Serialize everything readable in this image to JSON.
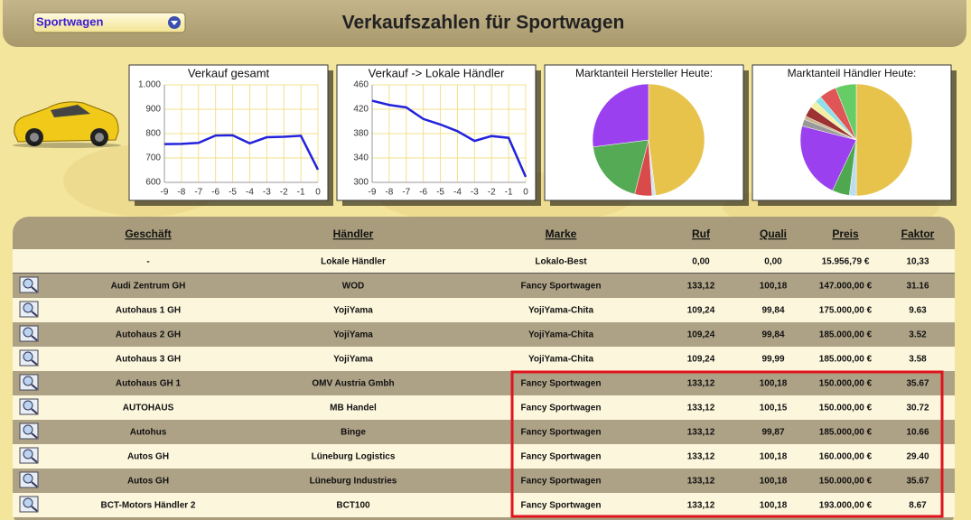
{
  "header": {
    "dropdown": "Sportwagen",
    "title": "Verkaufszahlen für Sportwagen"
  },
  "chart_data": [
    {
      "type": "line",
      "title": "Verkauf gesamt",
      "x": [
        -9,
        -8,
        -7,
        -6,
        -5,
        -4,
        -3,
        -2,
        -1,
        0
      ],
      "values": [
        757,
        758,
        762,
        792,
        793,
        760,
        785,
        787,
        791,
        652
      ],
      "color": "#2222dd",
      "xlim": [
        -9,
        0
      ],
      "ylim": [
        600,
        1000
      ],
      "xticks": [
        -9,
        -8,
        -7,
        -6,
        -5,
        -4,
        -3,
        -2,
        -1,
        0
      ],
      "yticks": [
        {
          "value": 1000,
          "label": "1.000"
        },
        900,
        800,
        700,
        600
      ],
      "grid": true
    },
    {
      "type": "line",
      "title": "Verkauf -> Lokale Händler",
      "x": [
        -9,
        -8,
        -7,
        -6,
        -5,
        -4,
        -3,
        -2,
        -1,
        0
      ],
      "values": [
        434,
        427,
        423,
        404,
        395,
        384,
        368,
        376,
        373,
        309
      ],
      "color": "#2222dd",
      "xlim": [
        -9,
        0
      ],
      "ylim": [
        300,
        460
      ],
      "xticks": [
        -9,
        -8,
        -7,
        -6,
        -5,
        -4,
        -3,
        -2,
        -1,
        0
      ],
      "yticks": [
        460,
        420,
        380,
        340,
        300
      ],
      "grid": true
    },
    {
      "type": "pie",
      "title": "Marktanteil Hersteller Heute:",
      "values": [
        48,
        1,
        5,
        19,
        27
      ],
      "colors": [
        "#e8c34c",
        "#cfe6f5",
        "#d94b4b",
        "#55aa55",
        "#9a40ee"
      ]
    },
    {
      "type": "pie",
      "title": "Marktanteil Händler Heute:",
      "values": [
        50,
        2,
        5,
        22,
        2,
        1,
        3,
        2,
        2,
        5,
        6
      ],
      "colors": [
        "#e8c34c",
        "#bcdcf0",
        "#4fa84f",
        "#9a40ee",
        "#999999",
        "#c9b28a",
        "#9b3333",
        "#f5f0a0",
        "#8fe0e8",
        "#e05555",
        "#66cc66"
      ]
    }
  ],
  "table": {
    "columns": [
      "Geschäft",
      "Händler",
      "Marke",
      "Ruf",
      "Quali",
      "Preis",
      "Faktor"
    ],
    "rows": [
      [
        "-",
        "Lokale Händler",
        "Lokalo-Best",
        "0,00",
        "0,00",
        "15.956,79 €",
        "10,33"
      ],
      [
        "Audi Zentrum GH",
        "WOD",
        "Fancy Sportwagen",
        "133,12",
        "100,18",
        "147.000,00 €",
        "31.16"
      ],
      [
        "Autohaus 1 GH",
        "YojiYama",
        "YojiYama-Chita",
        "109,24",
        "99,84",
        "175.000,00 €",
        "9.63"
      ],
      [
        "Autohaus 2 GH",
        "YojiYama",
        "YojiYama-Chita",
        "109,24",
        "99,84",
        "185.000,00 €",
        "3.52"
      ],
      [
        "Autohaus 3 GH",
        "YojiYama",
        "YojiYama-Chita",
        "109,24",
        "99,99",
        "185.000,00 €",
        "3.58"
      ],
      [
        "Autohaus GH 1",
        "OMV Austria Gmbh",
        "Fancy Sportwagen",
        "133,12",
        "100,18",
        "150.000,00 €",
        "35.67"
      ],
      [
        "AUTOHAUS",
        "MB Handel",
        "Fancy Sportwagen",
        "133,12",
        "100,15",
        "150.000,00 €",
        "30.72"
      ],
      [
        "Autohus",
        "Binge",
        "Fancy Sportwagen",
        "133,12",
        "99,87",
        "185.000,00 €",
        "10.66"
      ],
      [
        "Autos GH",
        "Lüneburg Logistics",
        "Fancy Sportwagen",
        "133,12",
        "100,18",
        "160.000,00 €",
        "29.40"
      ],
      [
        "Autos GH",
        "Lüneburg Industries",
        "Fancy Sportwagen",
        "133,12",
        "100,18",
        "150.000,00 €",
        "35.67"
      ],
      [
        "BCT-Motors Händler 2",
        "BCT100",
        "Fancy Sportwagen",
        "133,12",
        "100,18",
        "193.000,00 €",
        "8.67"
      ]
    ]
  }
}
